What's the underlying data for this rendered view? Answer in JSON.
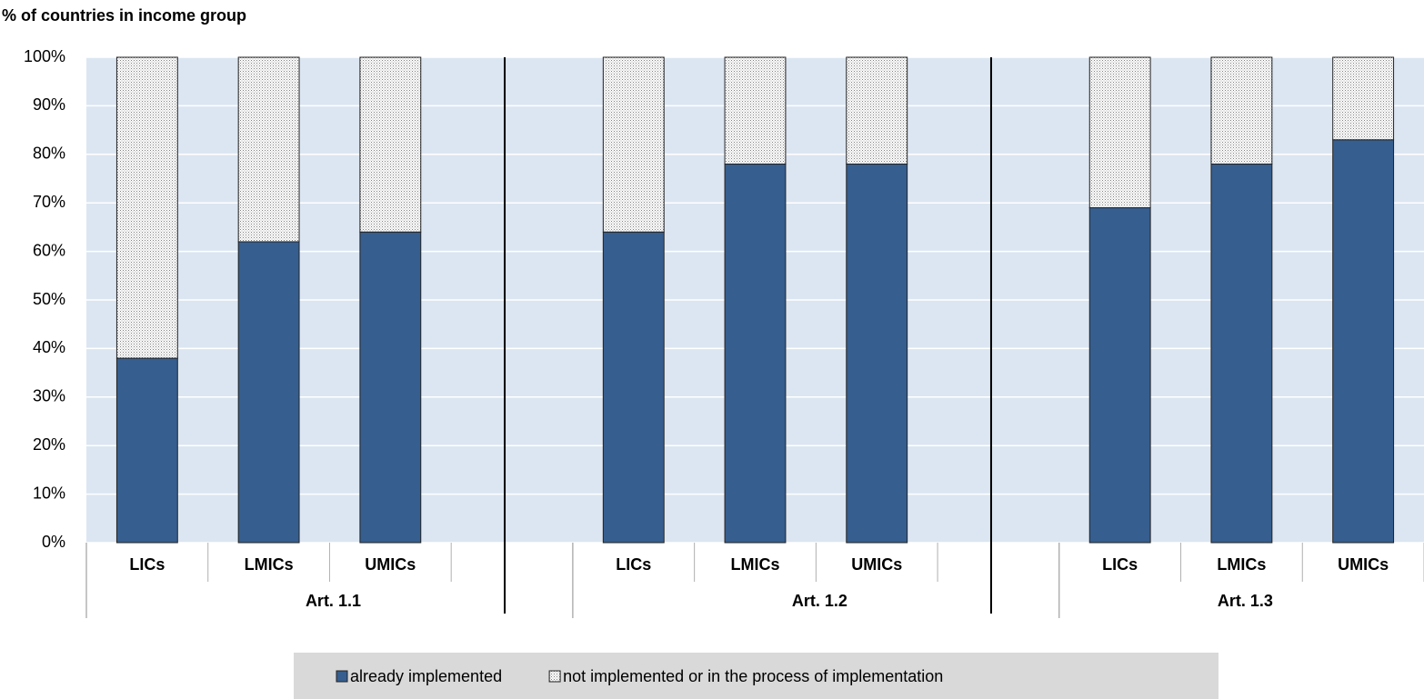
{
  "chart_data": {
    "type": "bar",
    "stacked": true,
    "title": "% of countries in income group",
    "categories": [
      "LICs",
      "LMICs",
      "UMICs",
      null,
      "LICs",
      "LMICs",
      "UMICs",
      null,
      "LICs",
      "LMICs",
      "UMICs"
    ],
    "groups": [
      "Art. 1.1",
      "Art. 1.2",
      "Art. 1.3"
    ],
    "series": [
      {
        "name": "already implemented",
        "color": "#365e8f",
        "values": [
          38,
          62,
          64,
          null,
          64,
          78,
          78,
          null,
          69,
          78,
          83
        ]
      },
      {
        "name": "not implemented or in the process of implementation",
        "color": "#ffffff",
        "hatch": "dots",
        "values": [
          62,
          38,
          36,
          null,
          36,
          22,
          22,
          null,
          31,
          22,
          17
        ]
      }
    ],
    "ylim": [
      0,
      100
    ],
    "yticks": [
      {
        "value": 0,
        "label": "0%"
      },
      {
        "value": 10,
        "label": "10%"
      },
      {
        "value": 20,
        "label": "20%"
      },
      {
        "value": 30,
        "label": "30%"
      },
      {
        "value": 40,
        "label": "40%"
      },
      {
        "value": 50,
        "label": "50%"
      },
      {
        "value": 60,
        "label": "60%"
      },
      {
        "value": 70,
        "label": "70%"
      },
      {
        "value": 80,
        "label": "80%"
      },
      {
        "value": 90,
        "label": "90%"
      },
      {
        "value": 100,
        "label": "100%"
      }
    ],
    "grid": true,
    "legend": "bottom"
  }
}
